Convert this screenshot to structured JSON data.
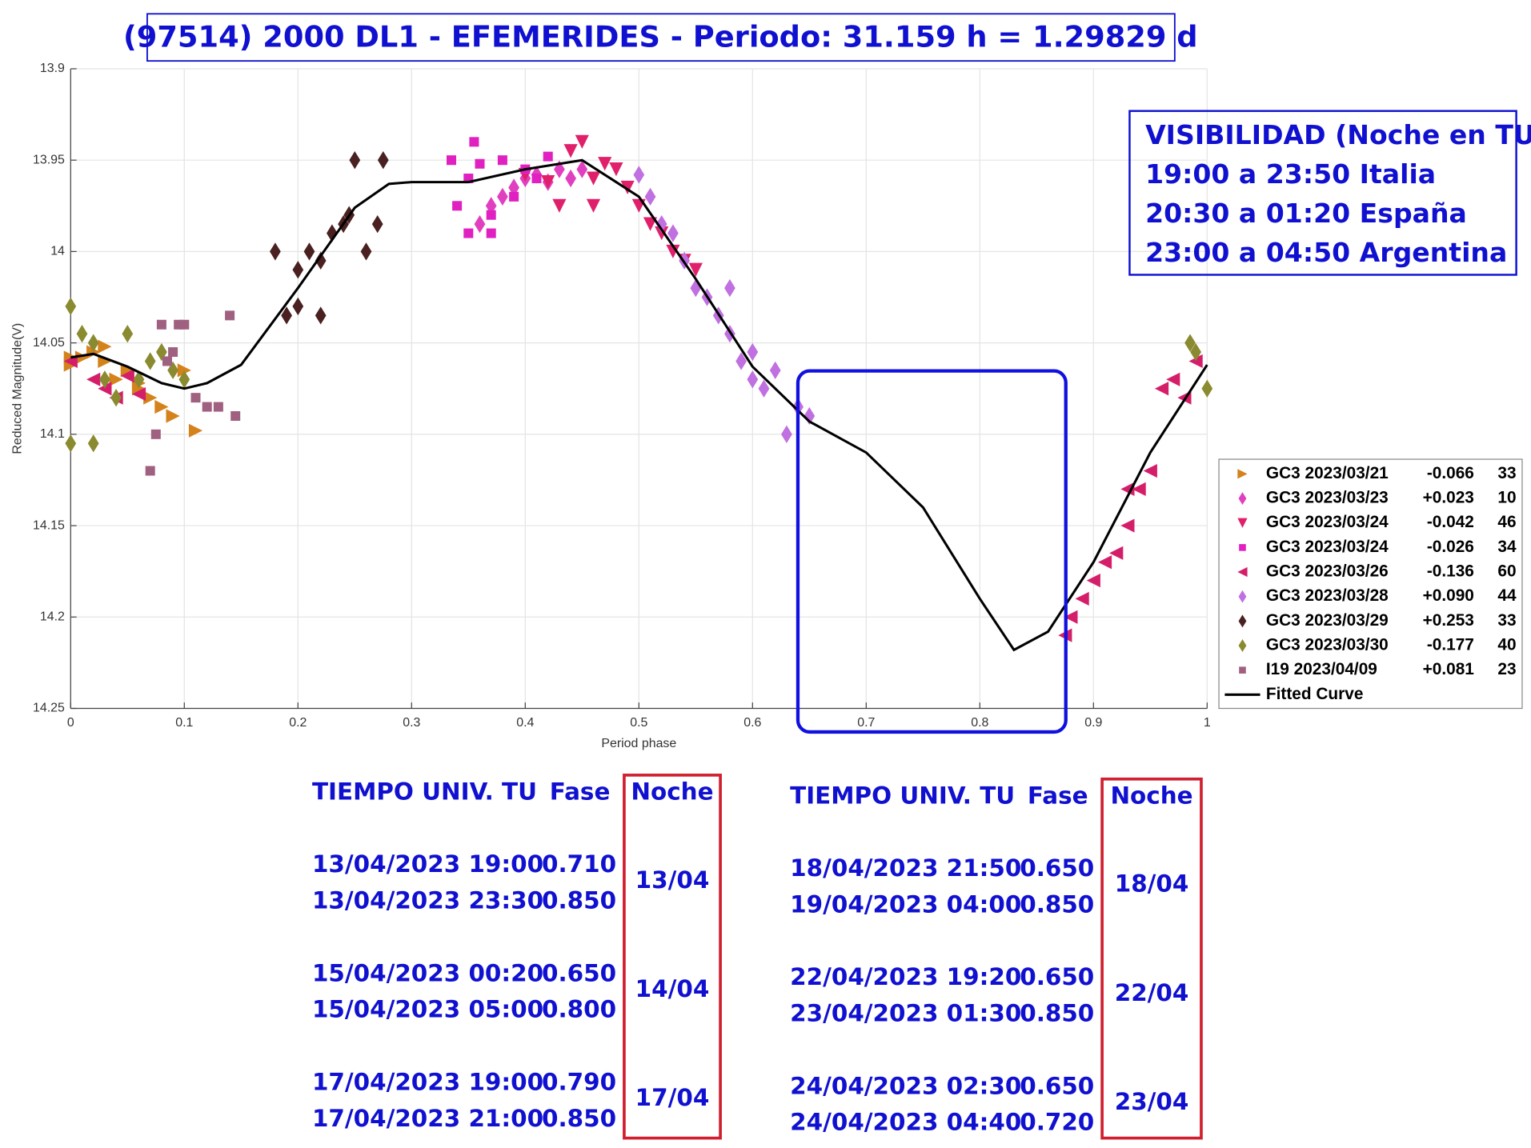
{
  "chart_data": {
    "type": "scatter",
    "title": "(97514) 2000 DL1 - EFEMERIDES - Periodo: 31.159 h = 1.29829 d",
    "x_label": "Period phase",
    "y_label": "Reduced Magnitude(V)",
    "xlim": [
      0,
      1
    ],
    "xticks": [
      0,
      0.1,
      0.2,
      0.3,
      0.4,
      0.5,
      0.6,
      0.7,
      0.8,
      0.9,
      1
    ],
    "ylim": [
      13.9,
      14.25
    ],
    "yticks": [
      13.9,
      13.95,
      14,
      14.05,
      14.1,
      14.15,
      14.2,
      14.25
    ],
    "y_inverted": true,
    "grid": true,
    "legend": "right",
    "series": [
      {
        "name": "GC3 2023/03/21",
        "offset": "-0.066",
        "count": 33,
        "marker": "tri-right",
        "color": "#d4821c",
        "x": [
          0.0,
          0.01,
          0.02,
          0.03,
          0.04,
          0.05,
          0.06,
          0.07,
          0.08,
          0.09,
          0.1,
          0.11,
          0.0,
          0.03,
          0.06
        ],
        "y": [
          14.062,
          14.058,
          14.055,
          14.06,
          14.07,
          14.065,
          14.075,
          14.08,
          14.085,
          14.09,
          14.065,
          14.098,
          14.058,
          14.052,
          14.072
        ]
      },
      {
        "name": "GC3 2023/03/23",
        "offset": "+0.023",
        "count": 10,
        "marker": "diamond",
        "color": "#e040c0",
        "x": [
          0.36,
          0.37,
          0.38,
          0.39,
          0.4,
          0.41,
          0.42,
          0.43,
          0.44,
          0.45
        ],
        "y": [
          13.985,
          13.975,
          13.97,
          13.965,
          13.96,
          13.958,
          13.962,
          13.955,
          13.96,
          13.955
        ]
      },
      {
        "name": "GC3 2023/03/24",
        "offset": "-0.042",
        "count": 46,
        "marker": "tri-down",
        "color": "#e0206a",
        "x": [
          0.4,
          0.42,
          0.44,
          0.45,
          0.46,
          0.47,
          0.48,
          0.49,
          0.5,
          0.51,
          0.52,
          0.53,
          0.54,
          0.55,
          0.43,
          0.46
        ],
        "y": [
          13.958,
          13.962,
          13.945,
          13.94,
          13.96,
          13.952,
          13.955,
          13.965,
          13.975,
          13.985,
          13.99,
          14.0,
          14.005,
          14.01,
          13.975,
          13.975
        ]
      },
      {
        "name": "GC3 2023/03/24",
        "offset": "-0.026",
        "count": 34,
        "marker": "square",
        "color": "#e020c0",
        "x": [
          0.335,
          0.34,
          0.35,
          0.355,
          0.36,
          0.37,
          0.38,
          0.39,
          0.4,
          0.41,
          0.42,
          0.37,
          0.35
        ],
        "y": [
          13.95,
          13.975,
          13.96,
          13.94,
          13.952,
          13.98,
          13.95,
          13.97,
          13.955,
          13.96,
          13.948,
          13.99,
          13.99
        ]
      },
      {
        "name": "GC3 2023/03/26",
        "offset": "-0.136",
        "count": 60,
        "marker": "tri-left",
        "color": "#d41e6a",
        "x": [
          0.88,
          0.89,
          0.9,
          0.91,
          0.92,
          0.93,
          0.94,
          0.95,
          0.96,
          0.97,
          0.98,
          0.99,
          0.0,
          0.02,
          0.03,
          0.04,
          0.05,
          0.06,
          0.875,
          0.93
        ],
        "y": [
          14.2,
          14.19,
          14.18,
          14.17,
          14.165,
          14.15,
          14.13,
          14.12,
          14.075,
          14.07,
          14.08,
          14.06,
          14.06,
          14.07,
          14.075,
          14.08,
          14.068,
          14.078,
          14.21,
          14.13
        ]
      },
      {
        "name": "GC3 2023/03/28",
        "offset": "+0.090",
        "count": 44,
        "marker": "diamond",
        "color": "#c070e0",
        "x": [
          0.5,
          0.51,
          0.52,
          0.53,
          0.54,
          0.55,
          0.56,
          0.57,
          0.58,
          0.59,
          0.6,
          0.61,
          0.62,
          0.63,
          0.64,
          0.65,
          0.6,
          0.58
        ],
        "y": [
          13.958,
          13.97,
          13.985,
          13.99,
          14.005,
          14.02,
          14.025,
          14.035,
          14.045,
          14.06,
          14.07,
          14.075,
          14.065,
          14.1,
          14.085,
          14.09,
          14.055,
          14.02
        ]
      },
      {
        "name": "GC3 2023/03/29",
        "offset": "+0.253",
        "count": 33,
        "marker": "diamond",
        "color": "#4a2020",
        "x": [
          0.18,
          0.19,
          0.2,
          0.21,
          0.22,
          0.23,
          0.24,
          0.25,
          0.26,
          0.27,
          0.275,
          0.2,
          0.22,
          0.245
        ],
        "y": [
          14.0,
          14.035,
          14.01,
          14.0,
          14.035,
          13.99,
          13.985,
          13.95,
          14.0,
          13.985,
          13.95,
          14.03,
          14.005,
          13.98
        ]
      },
      {
        "name": "GC3 2023/03/30",
        "offset": "-0.177",
        "count": 40,
        "marker": "diamond",
        "color": "#8a8a30",
        "x": [
          0.0,
          0.01,
          0.02,
          0.03,
          0.04,
          0.05,
          0.06,
          0.07,
          0.08,
          0.09,
          0.1,
          0.985,
          0.99,
          1.0,
          0.0,
          0.02
        ],
        "y": [
          14.03,
          14.045,
          14.05,
          14.07,
          14.08,
          14.045,
          14.07,
          14.06,
          14.055,
          14.065,
          14.07,
          14.05,
          14.055,
          14.075,
          14.105,
          14.105
        ]
      },
      {
        "name": "I19 2023/04/09",
        "offset": "+0.081",
        "count": 23,
        "marker": "square",
        "color": "#a06080",
        "x": [
          0.07,
          0.08,
          0.085,
          0.09,
          0.1,
          0.11,
          0.12,
          0.13,
          0.14,
          0.145,
          0.075,
          0.095
        ],
        "y": [
          14.12,
          14.04,
          14.06,
          14.055,
          14.04,
          14.08,
          14.085,
          14.085,
          14.035,
          14.09,
          14.1,
          14.04
        ]
      },
      {
        "name": "Fitted Curve",
        "marker": "line",
        "color": "#000000",
        "x": [
          0,
          0.02,
          0.05,
          0.08,
          0.1,
          0.12,
          0.15,
          0.2,
          0.25,
          0.28,
          0.3,
          0.35,
          0.4,
          0.45,
          0.5,
          0.55,
          0.6,
          0.65,
          0.7,
          0.75,
          0.8,
          0.83,
          0.86,
          0.9,
          0.95,
          1.0
        ],
        "y": [
          14.058,
          14.056,
          14.063,
          14.072,
          14.075,
          14.072,
          14.062,
          14.02,
          13.976,
          13.963,
          13.962,
          13.962,
          13.955,
          13.95,
          13.97,
          14.015,
          14.063,
          14.093,
          14.11,
          14.14,
          14.19,
          14.218,
          14.208,
          14.17,
          14.11,
          14.062
        ]
      }
    ]
  },
  "visibility": {
    "title": "VISIBILIDAD (Noche en TU)",
    "lines": [
      "19:00 a 23:50 Italia",
      "20:30 a 01:20 España",
      "23:00 a 04:50 Argentina"
    ]
  },
  "schedule": [
    {
      "headers": [
        "TIEMPO UNIV. TU",
        "Fase",
        "Noche"
      ],
      "groups": [
        {
          "night": "13/04",
          "rows": [
            [
              "13/04/2023  19:00",
              "0.710"
            ],
            [
              "13/04/2023  23:30",
              "0.850"
            ]
          ]
        },
        {
          "night": "14/04",
          "rows": [
            [
              "15/04/2023  00:20",
              "0.650"
            ],
            [
              "15/04/2023  05:00",
              "0.800"
            ]
          ]
        },
        {
          "night": "17/04",
          "rows": [
            [
              "17/04/2023  19:00",
              "0.790"
            ],
            [
              "17/04/2023  21:00",
              "0.850"
            ]
          ]
        }
      ]
    },
    {
      "headers": [
        "TIEMPO UNIV. TU",
        "Fase",
        "Noche"
      ],
      "groups": [
        {
          "night": "18/04",
          "rows": [
            [
              "18/04/2023  21:50",
              "0.650"
            ],
            [
              "19/04/2023  04:00",
              "0.850"
            ]
          ]
        },
        {
          "night": "22/04",
          "rows": [
            [
              "22/04/2023  19:20",
              "0.650"
            ],
            [
              "23/04/2023  01:30",
              "0.850"
            ]
          ]
        },
        {
          "night": "23/04",
          "rows": [
            [
              "24/04/2023  02:30",
              "0.650"
            ],
            [
              "24/04/2023  04:40",
              "0.720"
            ]
          ]
        }
      ]
    }
  ]
}
